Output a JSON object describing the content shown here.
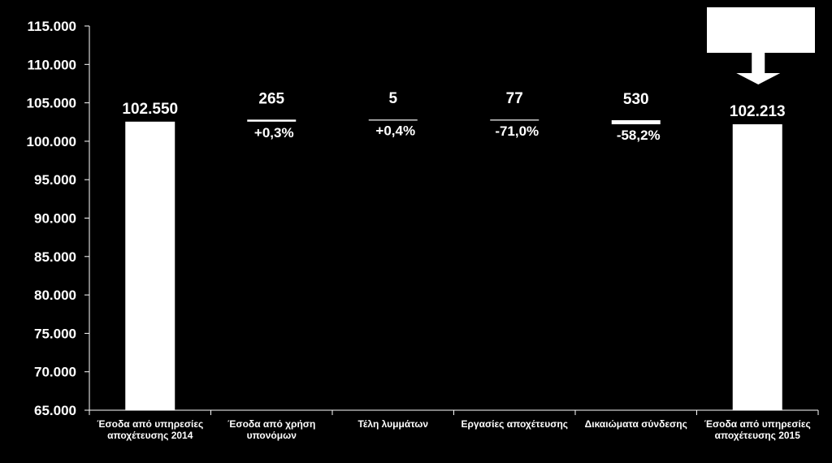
{
  "chart_data": {
    "type": "bar",
    "ylim": [
      65000,
      115000
    ],
    "yticks": [
      "115.000",
      "110.000",
      "105.000",
      "100.000",
      "95.000",
      "90.000",
      "85.000",
      "80.000",
      "75.000",
      "70.000",
      "65.000"
    ],
    "ytick_values": [
      115000,
      110000,
      105000,
      100000,
      95000,
      90000,
      85000,
      80000,
      75000,
      70000,
      65000
    ],
    "categories": [
      [
        "Έσοδα από υπηρεσίες",
        "αποχέτευσης 2014"
      ],
      [
        "Έσοδα από χρήση",
        "υπονόμων"
      ],
      [
        "Τέλη λυμμάτων"
      ],
      [
        "Εργασίες αποχέτευσης"
      ],
      [
        "Δικαιώματα σύνδεσης"
      ],
      [
        "Έσοδα από υπηρεσίες",
        "αποχέτευσης 2015"
      ]
    ],
    "bars": [
      {
        "kind": "total",
        "value": 102550,
        "label": "102.550"
      },
      {
        "kind": "delta",
        "base": 102550,
        "delta": 265,
        "label": "265",
        "pct": "+0,3%"
      },
      {
        "kind": "delta",
        "base": 102815,
        "delta": 5,
        "label": "5",
        "pct": "+0,4%"
      },
      {
        "kind": "delta",
        "base": 102820,
        "delta": -77,
        "label": "77",
        "pct": "-71,0%"
      },
      {
        "kind": "delta",
        "base": 102743,
        "delta": -530,
        "label": "530",
        "pct": "-58,2%"
      },
      {
        "kind": "total",
        "value": 102213,
        "label": "102.213"
      }
    ],
    "colors": {
      "background": "#000000",
      "bar": "#ffffff",
      "axis": "#ffffff",
      "text": "#ffffff"
    },
    "callout": {
      "shape": "box-with-down-arrow",
      "text": ""
    },
    "grid": false,
    "legend": "none"
  }
}
